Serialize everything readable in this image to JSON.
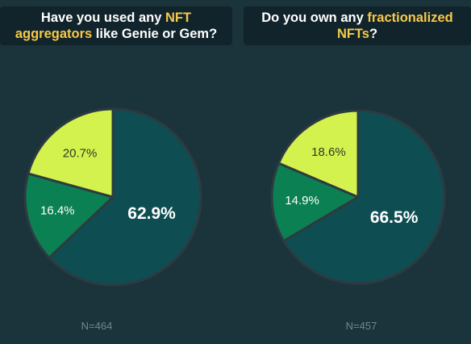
{
  "colors": {
    "background": "#1b333b",
    "title_bg": "#11242b",
    "highlight": "#f7c948",
    "slice_dark": "#0e4d52",
    "slice_green": "#0b8052",
    "slice_lime": "#d4f24d",
    "outline": "#2d3b41"
  },
  "chart_data": [
    {
      "type": "pie",
      "title_parts": [
        "Have you used any ",
        "NFT aggregators",
        " like Genie or Gem?"
      ],
      "slices": [
        {
          "label": "62.9%",
          "value": 62.9,
          "color": "#0e4d52"
        },
        {
          "label": "16.4%",
          "value": 16.4,
          "color": "#0b8052"
        },
        {
          "label": "20.7%",
          "value": 20.7,
          "color": "#d4f24d"
        }
      ],
      "sample_size": "N=464"
    },
    {
      "type": "pie",
      "title_parts": [
        "Do you own any ",
        "fractionalized NFTs",
        "?"
      ],
      "slices": [
        {
          "label": "66.5%",
          "value": 66.5,
          "color": "#0e4d52"
        },
        {
          "label": "14.9%",
          "value": 14.9,
          "color": "#0b8052"
        },
        {
          "label": "18.6%",
          "value": 18.6,
          "color": "#d4f24d"
        }
      ],
      "sample_size": "N=457"
    }
  ]
}
